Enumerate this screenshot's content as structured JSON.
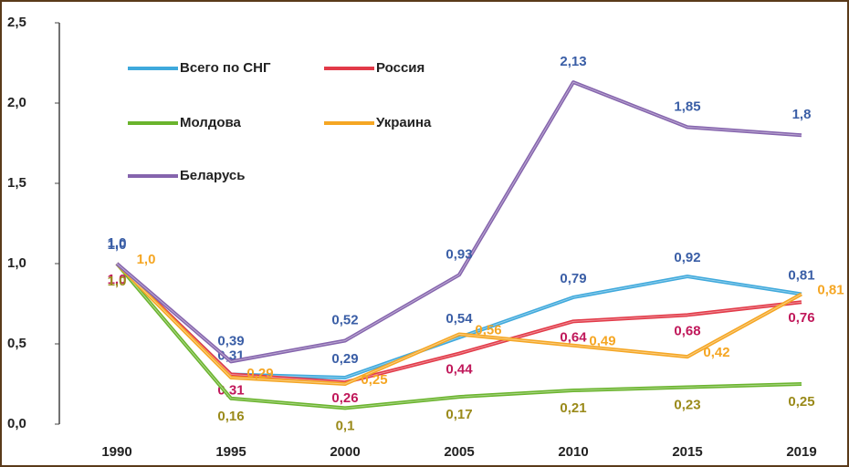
{
  "chart_data": {
    "type": "line",
    "categories": [
      "1990",
      "1995",
      "2000",
      "2005",
      "2010",
      "2015",
      "2019"
    ],
    "ylim": [
      0,
      2.5
    ],
    "yticks": [
      {
        "value": 0,
        "label": "0,0"
      },
      {
        "value": 0.5,
        "label": "0,5"
      },
      {
        "value": 1,
        "label": "1,0"
      },
      {
        "value": 1.5,
        "label": "1,5"
      },
      {
        "value": 2,
        "label": "2,0"
      },
      {
        "value": 2.5,
        "label": "2,5"
      }
    ],
    "grid": false,
    "legend": "top-left",
    "series": [
      {
        "name": "Всего по СНГ",
        "color": "#3fa9dc",
        "label_color": "#3a5ea6",
        "values": [
          1.0,
          0.31,
          0.29,
          0.54,
          0.79,
          0.92,
          0.81
        ],
        "value_labels": [
          "1,0",
          "0,31",
          "0,29",
          "0,54",
          "0,79",
          "0,92",
          "0,81"
        ]
      },
      {
        "name": "Россия",
        "color": "#e23a48",
        "label_color": "#c0185a",
        "values": [
          1.0,
          0.31,
          0.26,
          0.44,
          0.64,
          0.68,
          0.76
        ],
        "value_labels": [
          "1,0",
          "0,31",
          "0,26",
          "0,44",
          "0,64",
          "0,68",
          "0,76"
        ]
      },
      {
        "name": "Молдова",
        "color": "#6ab42d",
        "label_color": "#9a8a1a",
        "values": [
          1.0,
          0.16,
          0.1,
          0.17,
          0.21,
          0.23,
          0.25
        ],
        "value_labels": [
          "1,0",
          "0,16",
          "0,1",
          "0,17",
          "0,21",
          "0,23",
          "0,25"
        ]
      },
      {
        "name": "Украина",
        "color": "#f5a623",
        "label_color": "#f5a623",
        "values": [
          1.0,
          0.29,
          0.25,
          0.56,
          0.49,
          0.42,
          0.81
        ],
        "value_labels": [
          "1,0",
          "0,29",
          "0,25",
          "0,56",
          "0,49",
          "0,42",
          "0,81"
        ]
      },
      {
        "name": "Беларусь",
        "color": "#8564ad",
        "label_color": "#3a5ea6",
        "values": [
          1.0,
          0.39,
          0.52,
          0.93,
          2.13,
          1.85,
          1.8
        ],
        "value_labels": [
          "1,0",
          "0,39",
          "0,52",
          "0,93",
          "2,13",
          "1,85",
          "1,8"
        ]
      }
    ]
  }
}
